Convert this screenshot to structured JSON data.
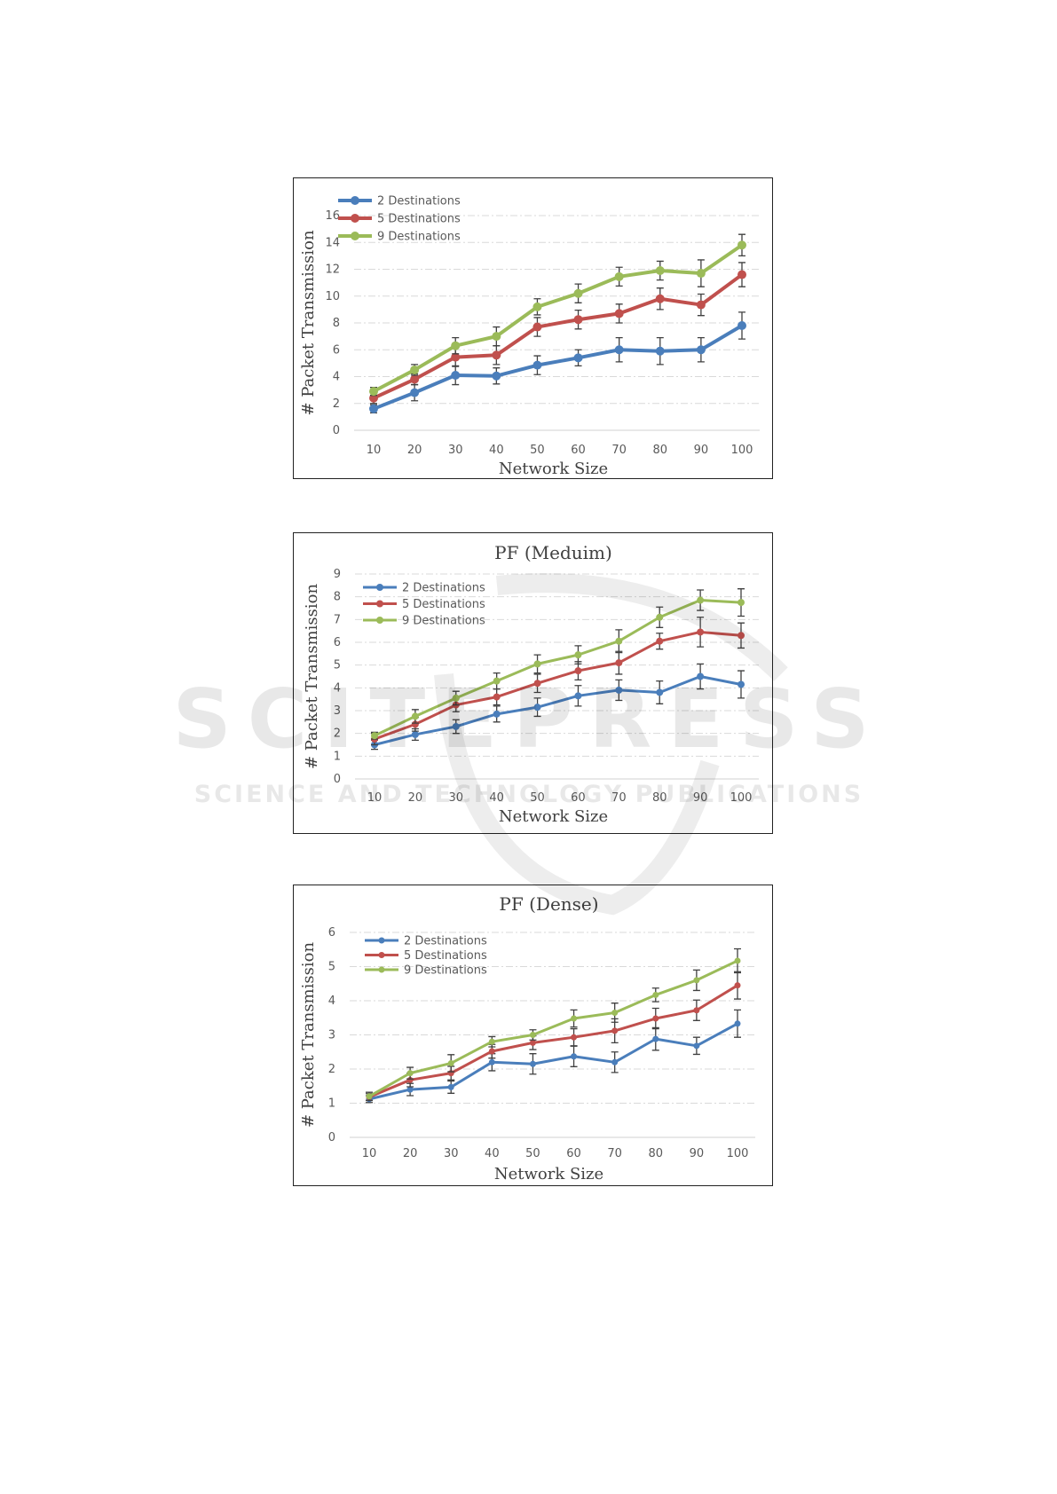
{
  "watermark": {
    "line1": "SCITEPRESS",
    "line2": "SCIENCE AND TECHNOLOGY PUBLICATIONS"
  },
  "colors": {
    "series": [
      "#4a7ebb",
      "#c0504d",
      "#9bbb59"
    ],
    "grid": "#d9d9d9",
    "text": "#595959",
    "error_bar": "#404040"
  },
  "chart_data": [
    {
      "type": "line",
      "title": "",
      "xlabel": "Network Size",
      "ylabel": "# Packet Transmission",
      "categories": [
        "10",
        "20",
        "30",
        "40",
        "50",
        "60",
        "70",
        "80",
        "90",
        "100"
      ],
      "ylim": [
        0,
        16
      ],
      "yticks": [
        "0",
        "2",
        "4",
        "6",
        "8",
        "10",
        "12",
        "14",
        "16"
      ],
      "grid": true,
      "legend": "top-left",
      "series": [
        {
          "name": "2 Destinations",
          "values": [
            1.6,
            2.8,
            4.1,
            4.05,
            4.85,
            5.4,
            6.0,
            5.9,
            6.0,
            7.8
          ],
          "error": [
            0.3,
            0.6,
            0.7,
            0.6,
            0.7,
            0.6,
            0.9,
            1.0,
            0.9,
            1.0
          ]
        },
        {
          "name": "5 Destinations",
          "values": [
            2.4,
            3.8,
            5.45,
            5.6,
            7.7,
            8.25,
            8.7,
            9.8,
            9.35,
            11.6
          ],
          "error": [
            0.4,
            0.4,
            0.7,
            0.7,
            0.7,
            0.7,
            0.7,
            0.8,
            0.8,
            0.9
          ]
        },
        {
          "name": "9 Destinations",
          "values": [
            2.9,
            4.5,
            6.3,
            7.0,
            9.2,
            10.2,
            11.45,
            11.9,
            11.7,
            13.8
          ],
          "error": [
            0.3,
            0.4,
            0.6,
            0.7,
            0.6,
            0.7,
            0.7,
            0.7,
            1.0,
            0.8
          ]
        }
      ]
    },
    {
      "type": "line",
      "title": "PF (Meduim)",
      "xlabel": "Network Size",
      "ylabel": "# Packet Transmission",
      "categories": [
        "10",
        "20",
        "30",
        "40",
        "50",
        "60",
        "70",
        "80",
        "90",
        "100"
      ],
      "ylim": [
        0,
        9
      ],
      "yticks": [
        "0",
        "1",
        "2",
        "3",
        "4",
        "5",
        "6",
        "7",
        "8",
        "9"
      ],
      "grid": true,
      "legend": "top-left",
      "series": [
        {
          "name": "2 Destinations",
          "values": [
            1.5,
            1.95,
            2.3,
            2.85,
            3.15,
            3.65,
            3.9,
            3.8,
            4.5,
            4.15
          ],
          "error": [
            0.2,
            0.25,
            0.3,
            0.35,
            0.4,
            0.45,
            0.45,
            0.5,
            0.55,
            0.6
          ]
        },
        {
          "name": "5 Destinations",
          "values": [
            1.75,
            2.4,
            3.25,
            3.6,
            4.2,
            4.75,
            5.1,
            6.05,
            6.45,
            6.3
          ],
          "error": [
            0.25,
            0.3,
            0.3,
            0.35,
            0.4,
            0.4,
            0.5,
            0.35,
            0.65,
            0.55
          ]
        },
        {
          "name": "9 Destinations",
          "values": [
            1.9,
            2.75,
            3.55,
            4.3,
            5.05,
            5.45,
            6.05,
            7.1,
            7.85,
            7.75
          ],
          "error": [
            0.15,
            0.3,
            0.3,
            0.35,
            0.4,
            0.4,
            0.5,
            0.45,
            0.45,
            0.6
          ]
        }
      ]
    },
    {
      "type": "line",
      "title": "PF (Dense)",
      "xlabel": "Network Size",
      "ylabel": "# Packet Transmission",
      "categories": [
        "10",
        "20",
        "30",
        "40",
        "50",
        "60",
        "70",
        "80",
        "90",
        "100"
      ],
      "ylim": [
        0,
        6
      ],
      "yticks": [
        "0",
        "1",
        "2",
        "3",
        "4",
        "5",
        "6"
      ],
      "grid": true,
      "legend": "top-left",
      "series": [
        {
          "name": "2 Destinations",
          "values": [
            1.12,
            1.4,
            1.47,
            2.2,
            2.15,
            2.37,
            2.2,
            2.88,
            2.68,
            3.33
          ],
          "error": [
            0.1,
            0.18,
            0.18,
            0.25,
            0.3,
            0.3,
            0.3,
            0.33,
            0.25,
            0.4
          ]
        },
        {
          "name": "5 Destinations",
          "values": [
            1.18,
            1.68,
            1.88,
            2.52,
            2.77,
            2.93,
            3.12,
            3.48,
            3.72,
            4.45
          ],
          "error": [
            0.1,
            0.2,
            0.2,
            0.2,
            0.2,
            0.25,
            0.35,
            0.3,
            0.3,
            0.4
          ]
        },
        {
          "name": "9 Destinations",
          "values": [
            1.2,
            1.88,
            2.17,
            2.8,
            3.0,
            3.48,
            3.65,
            4.17,
            4.6,
            5.17
          ],
          "error": [
            0.12,
            0.17,
            0.25,
            0.15,
            0.15,
            0.25,
            0.28,
            0.2,
            0.3,
            0.35
          ]
        }
      ]
    }
  ]
}
